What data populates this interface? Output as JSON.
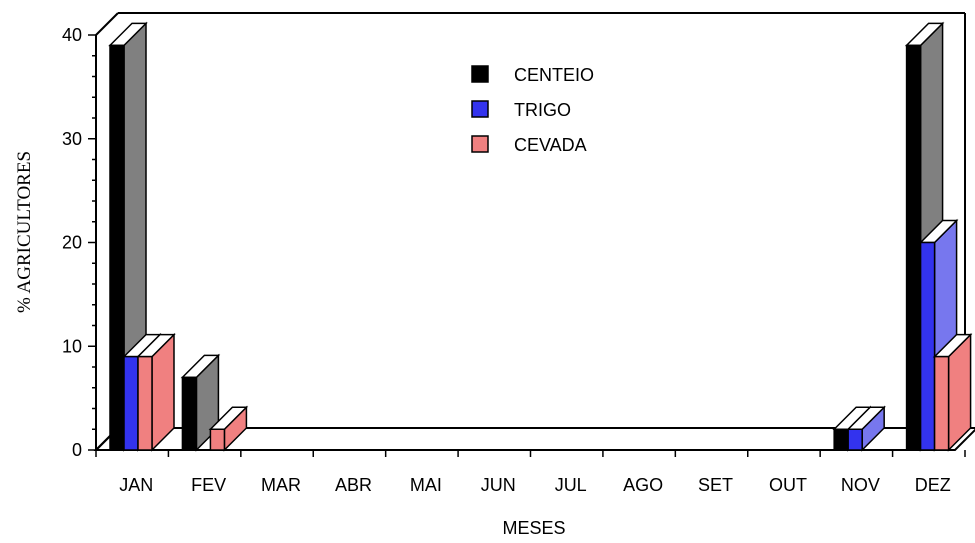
{
  "chart_data": {
    "type": "bar",
    "style": "3d-clustered",
    "categories": [
      "JAN",
      "FEV",
      "MAR",
      "ABR",
      "MAI",
      "JUN",
      "JUL",
      "AGO",
      "SET",
      "OUT",
      "NOV",
      "DEZ"
    ],
    "series": [
      {
        "name": "CENTEIO",
        "values": [
          39,
          7,
          0,
          0,
          0,
          0,
          0,
          0,
          0,
          0,
          2,
          39
        ],
        "color": "#000000",
        "side_color": "#808080"
      },
      {
        "name": "TRIGO",
        "values": [
          9,
          0,
          0,
          0,
          0,
          0,
          0,
          0,
          0,
          0,
          2,
          20
        ],
        "color": "#3333ee",
        "side_color": "#7777ee"
      },
      {
        "name": "CEVADA",
        "values": [
          9,
          2,
          0,
          0,
          0,
          0,
          0,
          0,
          0,
          0,
          0,
          9
        ],
        "color": "#f08080",
        "side_color": "#f08080"
      }
    ],
    "xlabel": "MESES",
    "ylabel": "% AGRICULTORES",
    "ylim": [
      0,
      40
    ],
    "yticks": [
      "0",
      "10",
      "20",
      "30",
      "40"
    ],
    "legend_position": "top-center",
    "grid": false
  }
}
